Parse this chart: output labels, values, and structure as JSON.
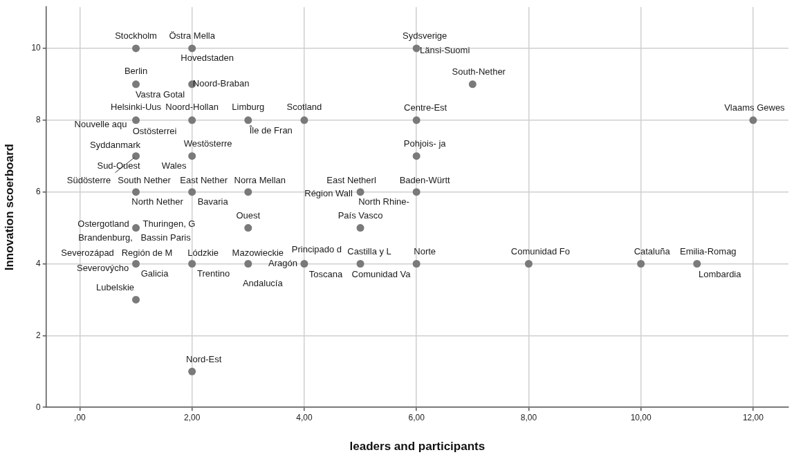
{
  "chart_data": {
    "type": "scatter",
    "xlabel": "leaders and participants",
    "ylabel": "Innovation scoerboard",
    "x": [
      1,
      2,
      1,
      2,
      1,
      2,
      3,
      4,
      1,
      2,
      1,
      2,
      3,
      5,
      6,
      6,
      7,
      6,
      6,
      12,
      1,
      3,
      5,
      1,
      2,
      3,
      4,
      5,
      6,
      8,
      10,
      11,
      1,
      2
    ],
    "series": [
      {
        "color": "#7a7a7a",
        "values": [
          10,
          10,
          9,
          9,
          8,
          8,
          8,
          8,
          7,
          7,
          6,
          6,
          6,
          6,
          6,
          10,
          9,
          8,
          7,
          8,
          5,
          5,
          5,
          4,
          4,
          4,
          4,
          4,
          4,
          4,
          4,
          4,
          3,
          1
        ]
      }
    ],
    "xlim": [
      -0.6,
      12.63
    ],
    "ylim": [
      0,
      11.15
    ],
    "xticks": [
      {
        "value": 0,
        "label": ",00"
      },
      {
        "value": 2,
        "label": "2,00"
      },
      {
        "value": 4,
        "label": "4,00"
      },
      {
        "value": 6,
        "label": "6,00"
      },
      {
        "value": 8,
        "label": "8,00"
      },
      {
        "value": 10,
        "label": "10,00"
      },
      {
        "value": 12,
        "label": "12,00"
      }
    ],
    "yticks": [
      0,
      2,
      4,
      6,
      8,
      10
    ],
    "grid": true,
    "marker": "circle",
    "legend": false,
    "annotations": [
      {
        "text": "Stockholm",
        "x": 1,
        "y": 10
      },
      {
        "text": "Östra Mella",
        "x": 2,
        "y": 10
      },
      {
        "text": "Hovedstaden",
        "x": 2,
        "y": 10
      },
      {
        "text": "Berlin",
        "x": 1,
        "y": 9
      },
      {
        "text": "Vastra Gotal",
        "x": 1,
        "y": 9
      },
      {
        "text": "Noord-Braban",
        "x": 2,
        "y": 9
      },
      {
        "text": "Helsinki-Uus",
        "x": 1,
        "y": 8
      },
      {
        "text": "Nouvelle aqu",
        "x": 1,
        "y": 8
      },
      {
        "text": "Ostösterrei",
        "x": 1,
        "y": 8
      },
      {
        "text": "Noord-Hollan",
        "x": 2,
        "y": 8
      },
      {
        "text": "Limburg",
        "x": 3,
        "y": 8
      },
      {
        "text": "Île de Fran",
        "x": 3,
        "y": 8
      },
      {
        "text": "Scotland",
        "x": 4,
        "y": 8
      },
      {
        "text": "Syddanmark",
        "x": 1,
        "y": 7
      },
      {
        "text": "Sud-Ouest",
        "x": 1,
        "y": 7
      },
      {
        "text": "Westösterre",
        "x": 2,
        "y": 7
      },
      {
        "text": "Wales",
        "x": 2,
        "y": 7
      },
      {
        "text": "Südösterre",
        "x": 1,
        "y": 6
      },
      {
        "text": "South Nether",
        "x": 1,
        "y": 6
      },
      {
        "text": "North Nether",
        "x": 1,
        "y": 6
      },
      {
        "text": "East Nether",
        "x": 2,
        "y": 6
      },
      {
        "text": "Bavaria",
        "x": 2,
        "y": 6
      },
      {
        "text": "Norra Mellan",
        "x": 3,
        "y": 6
      },
      {
        "text": "East Netherl",
        "x": 5,
        "y": 6
      },
      {
        "text": "Région Wall",
        "x": 5,
        "y": 6
      },
      {
        "text": "North Rhine-",
        "x": 5,
        "y": 6
      },
      {
        "text": "Baden-Württ",
        "x": 6,
        "y": 6
      },
      {
        "text": "Sydsverige",
        "x": 6,
        "y": 10
      },
      {
        "text": "Länsi-Suomi",
        "x": 6,
        "y": 10
      },
      {
        "text": "South-Nether",
        "x": 7,
        "y": 9
      },
      {
        "text": "Centre-Est",
        "x": 6,
        "y": 8
      },
      {
        "text": "Pohjois- ja",
        "x": 6,
        "y": 7
      },
      {
        "text": "Vlaams Gewes",
        "x": 12,
        "y": 8
      },
      {
        "text": "Ostergotland",
        "x": 1,
        "y": 5
      },
      {
        "text": "Thuringen, G",
        "x": 1,
        "y": 5
      },
      {
        "text": "Brandenburg,",
        "x": 1,
        "y": 5
      },
      {
        "text": "Bassin Paris",
        "x": 1,
        "y": 5
      },
      {
        "text": "Ouest",
        "x": 3,
        "y": 5
      },
      {
        "text": "País Vasco",
        "x": 5,
        "y": 5
      },
      {
        "text": "Severozápad",
        "x": 1,
        "y": 4
      },
      {
        "text": "Región de M",
        "x": 1,
        "y": 4
      },
      {
        "text": "Severovýcho",
        "x": 1,
        "y": 4
      },
      {
        "text": "Galicia",
        "x": 1,
        "y": 4
      },
      {
        "text": "Lódzkie",
        "x": 2,
        "y": 4
      },
      {
        "text": "Trentino",
        "x": 2,
        "y": 4
      },
      {
        "text": "Mazowieckie",
        "x": 3,
        "y": 4
      },
      {
        "text": "Andalucía",
        "x": 3,
        "y": 4
      },
      {
        "text": "Aragón",
        "x": 4,
        "y": 4
      },
      {
        "text": "Principado d",
        "x": 4,
        "y": 4
      },
      {
        "text": "Castilla y L",
        "x": 5,
        "y": 4
      },
      {
        "text": "Toscana",
        "x": 5,
        "y": 4
      },
      {
        "text": "Comunidad Va",
        "x": 5,
        "y": 4
      },
      {
        "text": "Norte",
        "x": 6,
        "y": 4
      },
      {
        "text": "Comunidad Fo",
        "x": 8,
        "y": 4
      },
      {
        "text": "Cataluña",
        "x": 10,
        "y": 4
      },
      {
        "text": "Emilia-Romag",
        "x": 11,
        "y": 4
      },
      {
        "text": "Lombardia",
        "x": 11,
        "y": 4
      },
      {
        "text": "Lubelskie",
        "x": 1,
        "y": 3
      },
      {
        "text": "Nord-Est",
        "x": 2,
        "y": 1
      }
    ]
  }
}
